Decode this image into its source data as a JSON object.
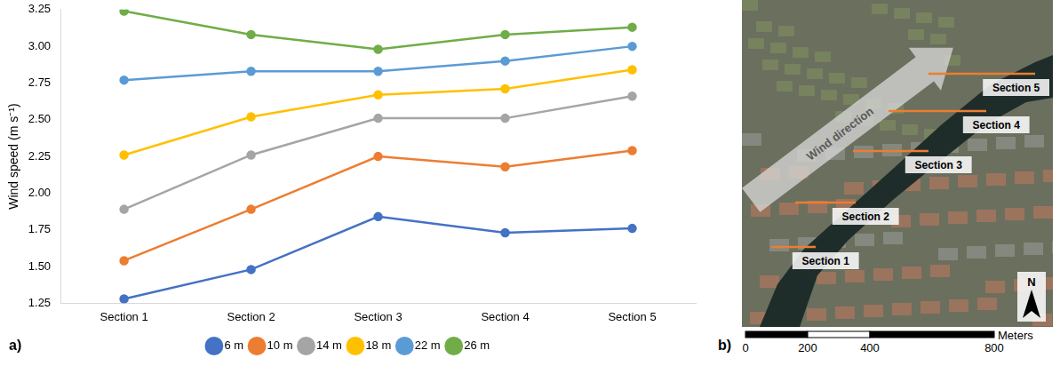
{
  "chart_data": {
    "type": "line",
    "panel": "a)",
    "y_label": "Wind speed (m s⁻¹)",
    "categories": [
      "Section 1",
      "Section 2",
      "Section 3",
      "Section 4",
      "Section 5"
    ],
    "series": [
      {
        "name": "6 m",
        "color": "#4472c4",
        "values": [
          1.28,
          1.48,
          1.84,
          1.73,
          1.76
        ]
      },
      {
        "name": "10 m",
        "color": "#ed7d31",
        "values": [
          1.54,
          1.89,
          2.25,
          2.18,
          2.29
        ]
      },
      {
        "name": "14 m",
        "color": "#a5a5a5",
        "values": [
          1.89,
          2.26,
          2.51,
          2.51,
          2.66
        ]
      },
      {
        "name": "18 m",
        "color": "#ffc000",
        "values": [
          2.26,
          2.52,
          2.67,
          2.71,
          2.84
        ]
      },
      {
        "name": "22 m",
        "color": "#5b9bd5",
        "values": [
          2.77,
          2.83,
          2.83,
          2.9,
          3.0
        ]
      },
      {
        "name": "26 m",
        "color": "#70ad47",
        "values": [
          3.24,
          3.08,
          2.98,
          3.08,
          3.13
        ]
      }
    ],
    "ylim": [
      1.25,
      3.25
    ],
    "yticks": [
      1.25,
      {
        "value": 1.5,
        "label": "1.50"
      },
      1.75,
      {
        "value": 2,
        "label": "2.00"
      },
      2.25,
      {
        "value": 2.5,
        "label": "2.50"
      },
      2.75,
      {
        "value": 3,
        "label": "3.00"
      },
      3.25
    ],
    "grid": false,
    "legend": "bottom",
    "marker": "circle"
  },
  "map": {
    "panel": "b)",
    "wind_label": "Wind direction",
    "north": "N",
    "sections": [
      "Section 1",
      "Section 2",
      "Section 3",
      "Section 4",
      "Section 5"
    ],
    "scale_bar": {
      "unit": "Meters",
      "ticks": [
        0,
        200,
        400,
        800
      ]
    }
  }
}
